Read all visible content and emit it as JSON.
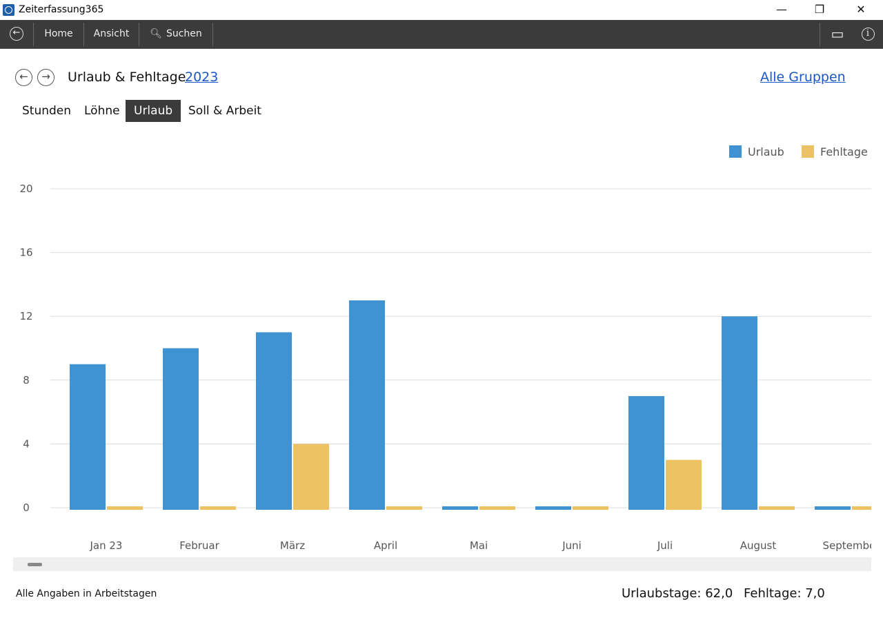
{
  "window": {
    "title": "Zeiterfassung365",
    "minimize": "—",
    "restore": "❐",
    "close": "✕"
  },
  "toolbar": {
    "back_icon": "←",
    "home": "Home",
    "view": "Ansicht",
    "search": "Suchen",
    "search_icon": "🔍︎",
    "screen_icon": "▭",
    "info_icon": "i"
  },
  "header": {
    "prev": "←",
    "next": "→",
    "title": "Urlaub & Fehltage",
    "year": "2023",
    "groups_link": "Alle Gruppen"
  },
  "tabs": [
    {
      "label": "Stunden"
    },
    {
      "label": "Löhne"
    },
    {
      "label": "Urlaub",
      "active": true
    },
    {
      "label": "Soll & Arbeit"
    }
  ],
  "footer": {
    "note": "Alle Angaben in Arbeitstagen",
    "vacation_total": "Urlaubstage: 62,0",
    "absence_total": "Fehltage: 7,0"
  },
  "chart_data": {
    "type": "bar",
    "categories": [
      "Jan 23",
      "Februar",
      "März",
      "April",
      "Mai",
      "Juni",
      "Juli",
      "August",
      "September"
    ],
    "series": [
      {
        "name": "Urlaub",
        "color": "#3f93d2",
        "values": [
          9,
          10,
          11,
          13,
          0,
          0,
          7,
          12,
          0
        ]
      },
      {
        "name": "Fehltage",
        "color": "#edc263",
        "values": [
          0,
          0,
          4,
          0,
          0,
          0,
          3,
          0,
          0
        ]
      }
    ],
    "ylim": [
      0,
      20
    ],
    "yticks": [
      "0",
      "4",
      "8",
      "12",
      "16",
      "20"
    ],
    "grid": true,
    "legend": "top-right"
  }
}
